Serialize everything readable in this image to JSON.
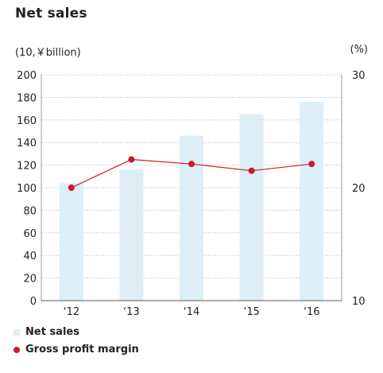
{
  "chart_data": {
    "type": "bar+line",
    "title": "Net sales",
    "left_unit": "(10,￥billion)",
    "right_unit": "(%)",
    "categories": [
      "‘12",
      "‘13",
      "‘14",
      "‘15",
      "‘16"
    ],
    "left_axis": {
      "min": 0,
      "max": 200,
      "ticks": [
        0,
        20,
        40,
        60,
        80,
        100,
        120,
        140,
        160,
        180,
        200
      ]
    },
    "right_axis": {
      "min": 10,
      "max": 30,
      "ticks": [
        10,
        20,
        30
      ]
    },
    "grid": true,
    "series": [
      {
        "name": "Net sales",
        "kind": "bar",
        "axis": "left",
        "color": "#ddeef7",
        "values": [
          104,
          116,
          146,
          165,
          176
        ]
      },
      {
        "name": "Gross profit margin",
        "kind": "line",
        "axis": "right",
        "color": "#cc1a2e",
        "values": [
          20.0,
          22.5,
          22.1,
          21.5,
          22.1
        ]
      }
    ],
    "legend_placement": "bottom-left"
  }
}
